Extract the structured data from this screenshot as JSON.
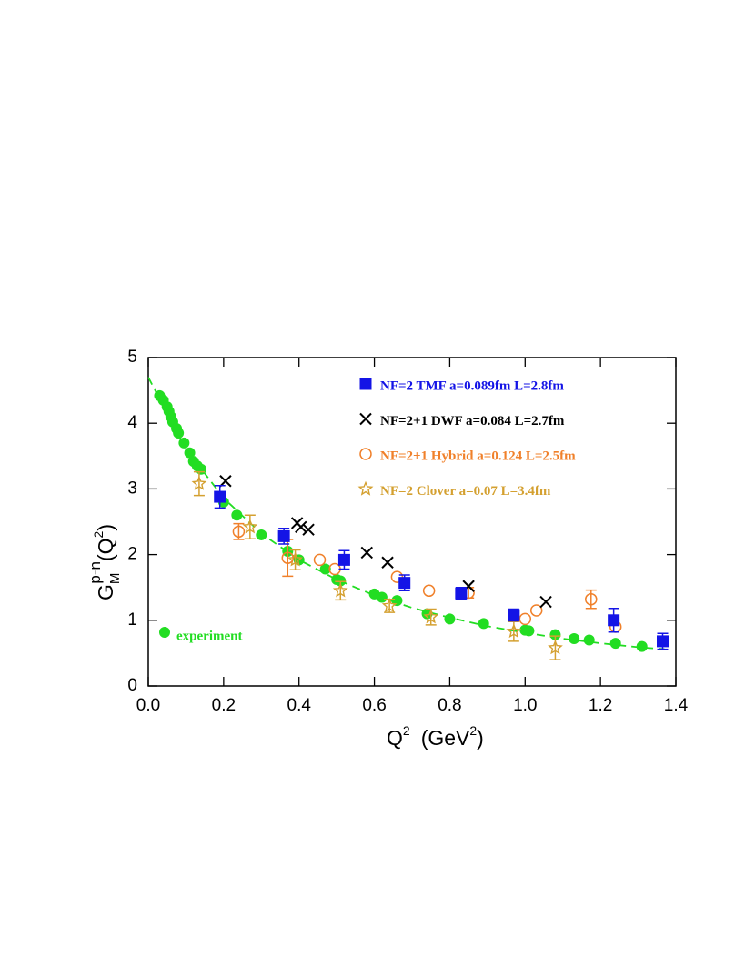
{
  "chart_data": {
    "type": "scatter",
    "xlabel_parts": [
      "Q",
      "2",
      "(GeV",
      "2",
      ")"
    ],
    "ylabel_parts": [
      "G",
      "M",
      "p-n",
      "(Q",
      "2",
      ")"
    ],
    "xlim": [
      0,
      1.4
    ],
    "ylim": [
      0,
      5
    ],
    "xticks": [
      {
        "value": 0,
        "label": "0.0"
      },
      0.2,
      0.4,
      0.6,
      0.8,
      {
        "value": 1,
        "label": "1.0"
      },
      1.2,
      1.4
    ],
    "yticks": [
      0,
      1,
      2,
      3,
      4,
      5
    ],
    "series": [
      {
        "name": "NF=2 TMF  a=0.089fm  L=2.8fm",
        "color": "#1414e6",
        "marker": "square",
        "x": [
          0.19,
          0.36,
          0.52,
          0.68,
          0.83,
          0.97,
          1.235,
          1.365
        ],
        "values": [
          2.88,
          2.28,
          1.92,
          1.57,
          1.41,
          1.08,
          1.0,
          0.68
        ],
        "errors": [
          0.17,
          0.12,
          0.14,
          0.12,
          0.09,
          0.09,
          0.18,
          0.12
        ]
      },
      {
        "name": "NF=2+1 DWF  a=0.084  L=2.7fm",
        "color": "#000000",
        "marker": "x",
        "x": [
          0.205,
          0.395,
          0.405,
          0.425,
          0.58,
          0.635,
          0.85,
          1.055
        ],
        "values": [
          3.12,
          2.48,
          2.42,
          2.38,
          2.03,
          1.88,
          1.52,
          1.28
        ]
      },
      {
        "name": "NF=2+1 Hybrid  a=0.124  L=2.5fm",
        "color": "#f0802a",
        "marker": "circle",
        "x": [
          0.24,
          0.37,
          0.455,
          0.495,
          0.66,
          0.745,
          0.85,
          1.0,
          1.03,
          1.175,
          1.24
        ],
        "values": [
          2.35,
          1.95,
          1.92,
          1.78,
          1.66,
          1.45,
          1.42,
          1.02,
          1.15,
          1.32,
          0.9
        ],
        "errors": [
          0.12,
          0.28,
          null,
          null,
          null,
          null,
          0.08,
          null,
          null,
          0.14,
          null
        ]
      },
      {
        "name": "NF=2 Clover  a=0.07  L=3.4fm",
        "color": "#d4a030",
        "marker": "star",
        "x": [
          0.135,
          0.27,
          0.39,
          0.51,
          0.64,
          0.75,
          0.97,
          1.08
        ],
        "values": [
          3.08,
          2.42,
          1.92,
          1.45,
          1.22,
          1.05,
          0.83,
          0.58
        ],
        "errors": [
          0.18,
          0.18,
          0.15,
          0.14,
          0.1,
          0.12,
          0.15,
          0.18
        ]
      },
      {
        "name": "experiment",
        "color": "#22dd22",
        "marker": "dot",
        "x": [
          0.03,
          0.04,
          0.05,
          0.055,
          0.06,
          0.065,
          0.075,
          0.08,
          0.095,
          0.11,
          0.12,
          0.13,
          0.14,
          0.2,
          0.235,
          0.3,
          0.37,
          0.4,
          0.47,
          0.5,
          0.51,
          0.6,
          0.62,
          0.66,
          0.74,
          0.8,
          0.89,
          1.0,
          1.01,
          1.08,
          1.13,
          1.17,
          1.24,
          1.31
        ],
        "values": [
          4.42,
          4.35,
          4.25,
          4.18,
          4.1,
          4.02,
          3.92,
          3.85,
          3.7,
          3.55,
          3.42,
          3.35,
          3.3,
          2.8,
          2.6,
          2.3,
          2.05,
          1.92,
          1.78,
          1.62,
          1.6,
          1.4,
          1.35,
          1.3,
          1.1,
          1.02,
          0.95,
          0.85,
          0.84,
          0.78,
          0.72,
          0.7,
          0.65,
          0.6
        ]
      },
      {
        "color": "#22dd22",
        "marker": "dashed-line",
        "x": [
          0,
          0.1,
          0.2,
          0.3,
          0.4,
          0.5,
          0.6,
          0.7,
          0.8,
          0.9,
          1.0,
          1.1,
          1.2,
          1.3,
          1.37
        ],
        "values": [
          4.7,
          3.61,
          2.86,
          2.32,
          1.92,
          1.62,
          1.38,
          1.19,
          1.04,
          0.91,
          0.81,
          0.72,
          0.65,
          0.59,
          0.56
        ]
      }
    ]
  }
}
